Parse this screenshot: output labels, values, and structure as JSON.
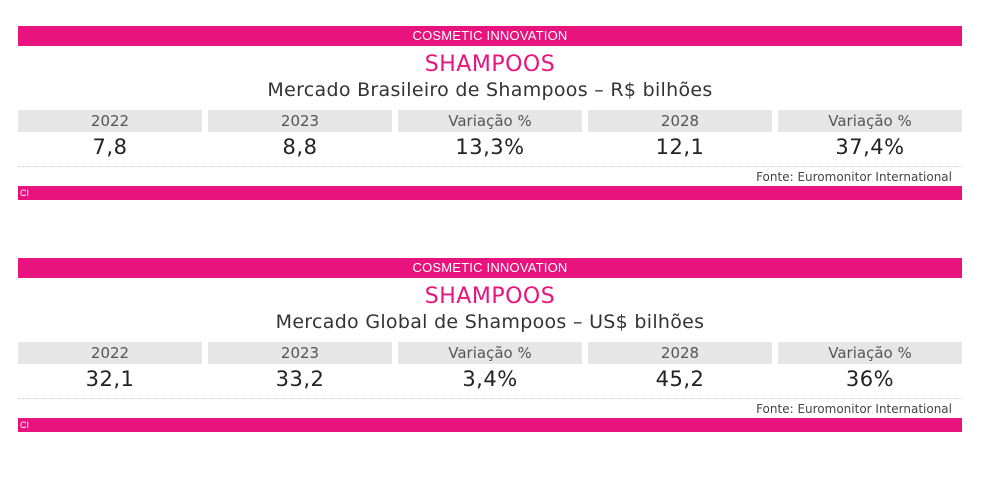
{
  "colors": {
    "accent": "#e8137c",
    "header_cell": "#e6e6e6"
  },
  "cards": [
    {
      "top_label": "COSMETIC INNOVATION",
      "heading": "SHAMPOOS",
      "subtitle": "Mercado Brasileiro de Shampoos – R$ bilhões",
      "columns": [
        {
          "header": "2022",
          "value": "7,8"
        },
        {
          "header": "2023",
          "value": "8,8"
        },
        {
          "header": "Variação %",
          "value": "13,3%"
        },
        {
          "header": "2028",
          "value": "12,1"
        },
        {
          "header": "Variação %",
          "value": "37,4%"
        }
      ],
      "source": "Fonte: Euromonitor International",
      "footer_label": "CI"
    },
    {
      "top_label": "COSMETIC INNOVATION",
      "heading": "SHAMPOOS",
      "subtitle": "Mercado Global de Shampoos – US$ bilhões",
      "columns": [
        {
          "header": "2022",
          "value": "32,1"
        },
        {
          "header": "2023",
          "value": "33,2"
        },
        {
          "header": "Variação %",
          "value": "3,4%"
        },
        {
          "header": "2028",
          "value": "45,2"
        },
        {
          "header": "Variação %",
          "value": "36%"
        }
      ],
      "source": "Fonte: Euromonitor International",
      "footer_label": "CI"
    }
  ]
}
